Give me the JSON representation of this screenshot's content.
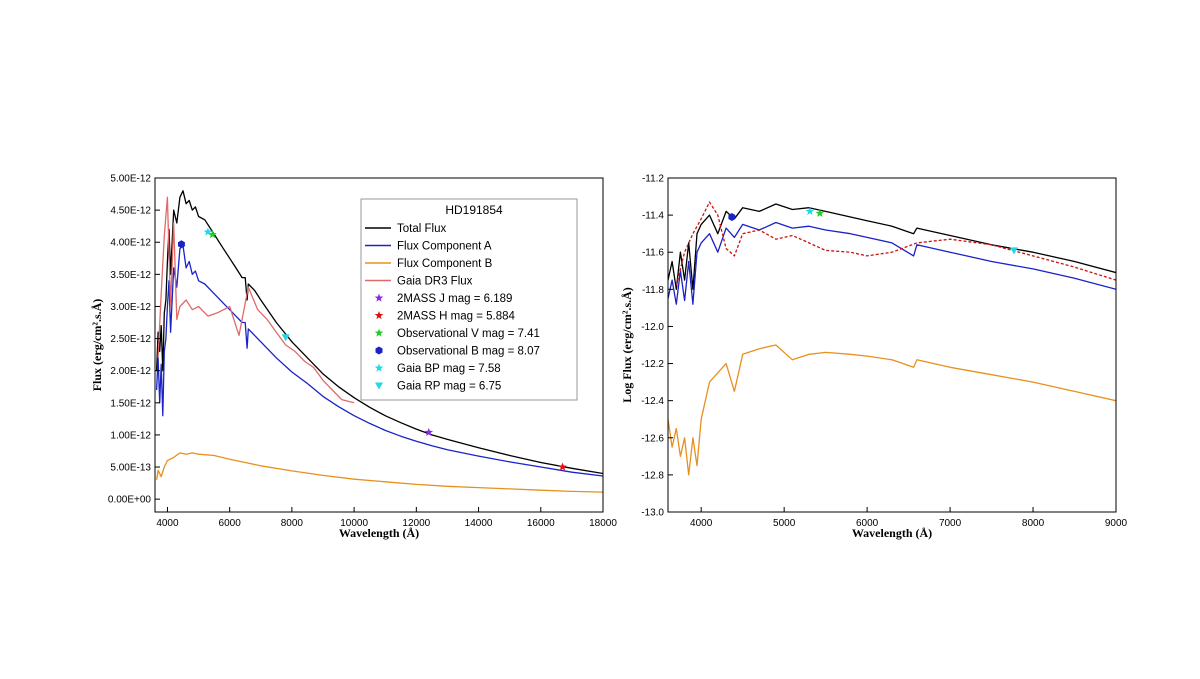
{
  "chart_data": [
    {
      "type": "line",
      "title": "",
      "xlabel": "Wavelength (Å)",
      "ylabel": "Flux (erg/cm².s.Å)",
      "xlim": [
        3600,
        18000
      ],
      "ylim": [
        -2e-13,
        5e-12
      ],
      "x_ticks": [
        4000,
        6000,
        8000,
        10000,
        12000,
        14000,
        16000,
        18000
      ],
      "x_tick_labels": [
        "4000",
        "6000",
        "8000",
        "10000",
        "12000",
        "14000",
        "16000",
        "18000"
      ],
      "y_ticks": [
        0,
        5e-13,
        1e-12,
        1.5e-12,
        2e-12,
        2.5e-12,
        3e-12,
        3.5e-12,
        4e-12,
        4.5e-12,
        5e-12
      ],
      "y_tick_labels": [
        "0.00E+00",
        "5.00E-13",
        "1.00E-12",
        "1.50E-12",
        "2.00E-12",
        "2.50E-12",
        "3.00E-12",
        "3.50E-12",
        "4.00E-12",
        "4.50E-12",
        "5.00E-12"
      ],
      "legend": {
        "title": "HD191854",
        "placement": "top-right",
        "entries": [
          {
            "label": "Total Flux",
            "color": "#000000",
            "kind": "line"
          },
          {
            "label": "Flux Component A",
            "color": "#1a22c8",
            "kind": "line"
          },
          {
            "label": "Flux Component B",
            "color": "#e8901e",
            "kind": "line"
          },
          {
            "label": "Gaia DR3 Flux",
            "color": "#e06a6a",
            "kind": "line"
          },
          {
            "label": "2MASS J mag = 6.189",
            "color": "#8a2be2",
            "kind": "star"
          },
          {
            "label": "2MASS H mag = 5.884",
            "color": "#e01010",
            "kind": "star"
          },
          {
            "label": "Observational V mag = 7.41",
            "color": "#22cc22",
            "kind": "star"
          },
          {
            "label": "Observational B mag = 8.07",
            "color": "#1a22c8",
            "kind": "hexagon"
          },
          {
            "label": "Gaia BP mag = 7.58",
            "color": "#20d8e8",
            "kind": "star"
          },
          {
            "label": "Gaia RP mag = 6.75",
            "color": "#20d8e8",
            "kind": "triangle"
          }
        ]
      },
      "series": [
        {
          "name": "Total Flux",
          "color": "#000000",
          "x": [
            3650,
            3700,
            3750,
            3800,
            3850,
            3900,
            3950,
            4000,
            4050,
            4100,
            4200,
            4300,
            4400,
            4500,
            4600,
            4700,
            4800,
            4900,
            5000,
            5200,
            5400,
            5600,
            5800,
            6000,
            6200,
            6400,
            6500,
            6560,
            6600,
            6800,
            7000,
            7500,
            8000,
            8500,
            9000,
            9500,
            10000,
            10500,
            11000,
            11500,
            12000,
            12500,
            13000,
            14000,
            15000,
            16000,
            17000,
            18000
          ],
          "y": [
            2e-12,
            2.6e-12,
            2.3e-12,
            2.7e-12,
            2e-12,
            2.9e-12,
            3.1e-12,
            3.7e-12,
            4.2e-12,
            3.5e-12,
            4.5e-12,
            4.3e-12,
            4.7e-12,
            4.8e-12,
            4.6e-12,
            4.65e-12,
            4.5e-12,
            4.55e-12,
            4.4e-12,
            4.35e-12,
            4.2e-12,
            4.05e-12,
            3.9e-12,
            3.75e-12,
            3.6e-12,
            3.45e-12,
            3.45e-12,
            3.1e-12,
            3.35e-12,
            3.25e-12,
            3.1e-12,
            2.75e-12,
            2.45e-12,
            2.2e-12,
            1.95e-12,
            1.75e-12,
            1.58e-12,
            1.43e-12,
            1.3e-12,
            1.19e-12,
            1.09e-12,
            1e-12,
            9.3e-13,
            8e-13,
            6.8e-13,
            5.7e-13,
            4.8e-13,
            4e-13
          ]
        },
        {
          "name": "Flux Component A",
          "color": "#1a22c8",
          "x": [
            3650,
            3700,
            3750,
            3800,
            3850,
            3900,
            3950,
            4000,
            4050,
            4100,
            4200,
            4300,
            4400,
            4500,
            4600,
            4700,
            4800,
            4900,
            5000,
            5200,
            5400,
            5600,
            5800,
            6000,
            6200,
            6400,
            6500,
            6560,
            6600,
            6800,
            7000,
            7500,
            8000,
            8500,
            9000,
            9500,
            10000,
            10500,
            11000,
            11500,
            12000,
            12500,
            13000,
            14000,
            15000,
            16000,
            17000,
            18000
          ],
          "y": [
            1.7e-12,
            2.2e-12,
            1.5e-12,
            2.1e-12,
            1.3e-12,
            2.3e-12,
            2.5e-12,
            3e-12,
            3.4e-12,
            2.6e-12,
            3.6e-12,
            3.3e-12,
            3.9e-12,
            3.95e-12,
            3.6e-12,
            3.7e-12,
            3.5e-12,
            3.55e-12,
            3.4e-12,
            3.35e-12,
            3.25e-12,
            3.15e-12,
            3.05e-12,
            2.95e-12,
            2.85e-12,
            2.75e-12,
            2.75e-12,
            2.35e-12,
            2.65e-12,
            2.55e-12,
            2.45e-12,
            2.2e-12,
            1.98e-12,
            1.8e-12,
            1.6e-12,
            1.44e-12,
            1.3e-12,
            1.18e-12,
            1.07e-12,
            9.8e-13,
            9e-13,
            8.3e-13,
            7.7e-13,
            6.7e-13,
            5.8e-13,
            5e-13,
            4.2e-13,
            3.6e-13
          ]
        },
        {
          "name": "Flux Component B",
          "color": "#e8901e",
          "x": [
            3650,
            3700,
            3800,
            3900,
            4000,
            4200,
            4400,
            4600,
            4800,
            5000,
            5500,
            6000,
            6500,
            7000,
            8000,
            9000,
            10000,
            11000,
            12000,
            13000,
            14000,
            15000,
            16000,
            17000,
            18000
          ],
          "y": [
            3e-13,
            4.5e-13,
            3.5e-13,
            5e-13,
            6e-13,
            6.5e-13,
            7.2e-13,
            7e-13,
            7.2e-13,
            7e-13,
            6.8e-13,
            6.2e-13,
            5.7e-13,
            5.2e-13,
            4.4e-13,
            3.7e-13,
            3.1e-13,
            2.7e-13,
            2.3e-13,
            2e-13,
            1.8e-13,
            1.6e-13,
            1.4e-13,
            1.2e-13,
            1.1e-13
          ]
        },
        {
          "name": "Gaia DR3 Flux",
          "color": "#e06a6a",
          "x": [
            3700,
            3800,
            3900,
            4000,
            4100,
            4200,
            4300,
            4400,
            4600,
            4800,
            5000,
            5300,
            5600,
            6000,
            6300,
            6600,
            6900,
            7200,
            7500,
            7800,
            8100,
            8400,
            8700,
            9000,
            9300,
            9600,
            10000
          ],
          "y": [
            2.2e-12,
            3.2e-12,
            4.1e-12,
            4.7e-12,
            3e-12,
            4.3e-12,
            2.8e-12,
            3e-12,
            3.1e-12,
            2.95e-12,
            3e-12,
            2.85e-12,
            2.9e-12,
            3e-12,
            2.55e-12,
            3.3e-12,
            2.95e-12,
            2.8e-12,
            2.6e-12,
            2.4e-12,
            2.3e-12,
            2.15e-12,
            2.05e-12,
            1.85e-12,
            1.7e-12,
            1.55e-12,
            1.5e-12
          ]
        }
      ],
      "markers": [
        {
          "name": "2MASS J mag = 6.189",
          "x": 12400,
          "y": 1.04e-12,
          "color": "#8a2be2",
          "kind": "star"
        },
        {
          "name": "2MASS H mag = 5.884",
          "x": 16700,
          "y": 5e-13,
          "color": "#e01010",
          "kind": "star"
        },
        {
          "name": "Observational V mag = 7.41",
          "x": 5450,
          "y": 4.12e-12,
          "color": "#22cc22",
          "kind": "star"
        },
        {
          "name": "Observational B mag = 8.07",
          "x": 4450,
          "y": 3.97e-12,
          "color": "#1a22c8",
          "kind": "hexagon"
        },
        {
          "name": "Gaia BP mag = 7.58",
          "x": 5300,
          "y": 4.16e-12,
          "color": "#20d8e8",
          "kind": "star"
        },
        {
          "name": "Gaia RP mag = 6.75",
          "x": 7800,
          "y": 2.52e-12,
          "color": "#20d8e8",
          "kind": "triangle"
        }
      ]
    },
    {
      "type": "line",
      "title": "",
      "xlabel": "Wavelength (Å)",
      "ylabel": "Log Flux (erg/cm².s.Å)",
      "xlim": [
        3600,
        9000
      ],
      "ylim": [
        -13.0,
        -11.2
      ],
      "x_ticks": [
        4000,
        5000,
        6000,
        7000,
        8000,
        9000
      ],
      "x_tick_labels": [
        "4000",
        "5000",
        "6000",
        "7000",
        "8000",
        "9000"
      ],
      "y_ticks": [
        -13.0,
        -12.8,
        -12.6,
        -12.4,
        -12.2,
        -12.0,
        -11.8,
        -11.6,
        -11.4,
        -11.2
      ],
      "y_tick_labels": [
        "-13.0",
        "-12.8",
        "-12.6",
        "-12.4",
        "-12.2",
        "-12.0",
        "-11.8",
        "-11.6",
        "-11.4",
        "-11.2"
      ],
      "series": [
        {
          "name": "Total Flux",
          "color": "#000000",
          "dash": "none",
          "x": [
            3600,
            3650,
            3700,
            3750,
            3800,
            3850,
            3900,
            3950,
            4000,
            4100,
            4200,
            4300,
            4400,
            4500,
            4700,
            4900,
            5100,
            5300,
            5500,
            5800,
            6000,
            6300,
            6560,
            6600,
            7000,
            7500,
            8000,
            8500,
            9000
          ],
          "y": [
            -11.75,
            -11.65,
            -11.8,
            -11.6,
            -11.75,
            -11.55,
            -11.8,
            -11.5,
            -11.45,
            -11.4,
            -11.5,
            -11.38,
            -11.42,
            -11.36,
            -11.38,
            -11.34,
            -11.37,
            -11.36,
            -11.38,
            -11.41,
            -11.43,
            -11.46,
            -11.5,
            -11.47,
            -11.51,
            -11.56,
            -11.6,
            -11.65,
            -11.71
          ]
        },
        {
          "name": "Flux Component A",
          "color": "#1a22c8",
          "dash": "none",
          "x": [
            3600,
            3650,
            3700,
            3750,
            3800,
            3850,
            3900,
            3950,
            4000,
            4100,
            4200,
            4300,
            4400,
            4500,
            4700,
            4900,
            5100,
            5300,
            5500,
            5800,
            6000,
            6300,
            6560,
            6600,
            7000,
            7500,
            8000,
            8500,
            9000
          ],
          "y": [
            -11.85,
            -11.75,
            -11.88,
            -11.7,
            -11.86,
            -11.65,
            -11.88,
            -11.6,
            -11.55,
            -11.5,
            -11.6,
            -11.47,
            -11.52,
            -11.45,
            -11.48,
            -11.44,
            -11.47,
            -11.46,
            -11.48,
            -11.5,
            -11.52,
            -11.55,
            -11.62,
            -11.56,
            -11.6,
            -11.65,
            -11.69,
            -11.74,
            -11.8
          ]
        },
        {
          "name": "Flux Component B",
          "color": "#e8901e",
          "dash": "none",
          "x": [
            3600,
            3650,
            3700,
            3750,
            3800,
            3850,
            3900,
            3950,
            4000,
            4100,
            4200,
            4300,
            4400,
            4500,
            4700,
            4900,
            5100,
            5300,
            5500,
            5800,
            6000,
            6300,
            6560,
            6600,
            7000,
            7500,
            8000,
            8500,
            9000
          ],
          "y": [
            -12.5,
            -12.65,
            -12.55,
            -12.7,
            -12.6,
            -12.8,
            -12.6,
            -12.75,
            -12.5,
            -12.3,
            -12.25,
            -12.2,
            -12.35,
            -12.15,
            -12.12,
            -12.1,
            -12.18,
            -12.15,
            -12.14,
            -12.15,
            -12.16,
            -12.18,
            -12.22,
            -12.18,
            -12.22,
            -12.26,
            -12.3,
            -12.35,
            -12.4
          ]
        },
        {
          "name": "Gaia DR3 Flux",
          "color": "#cc1010",
          "dash": "3,2",
          "x": [
            3700,
            3800,
            3900,
            4000,
            4100,
            4200,
            4300,
            4400,
            4500,
            4700,
            4900,
            5100,
            5300,
            5500,
            5800,
            6000,
            6300,
            6600,
            7000,
            7500,
            8000,
            8500,
            9000
          ],
          "y": [
            -11.78,
            -11.6,
            -11.5,
            -11.42,
            -11.33,
            -11.4,
            -11.58,
            -11.62,
            -11.5,
            -11.48,
            -11.53,
            -11.51,
            -11.55,
            -11.59,
            -11.6,
            -11.62,
            -11.6,
            -11.55,
            -11.53,
            -11.56,
            -11.62,
            -11.68,
            -11.75
          ]
        }
      ],
      "markers": [
        {
          "name": "Observational B mag = 8.07",
          "x": 4370,
          "y": -11.41,
          "color": "#1a22c8",
          "kind": "hexagon"
        },
        {
          "name": "Gaia BP mag = 7.58",
          "x": 5310,
          "y": -11.38,
          "color": "#20d8e8",
          "kind": "star"
        },
        {
          "name": "Observational V mag = 7.41",
          "x": 5430,
          "y": -11.39,
          "color": "#22cc22",
          "kind": "star"
        },
        {
          "name": "Gaia RP mag = 6.75",
          "x": 7770,
          "y": -11.59,
          "color": "#20d8e8",
          "kind": "triangle"
        }
      ]
    }
  ]
}
